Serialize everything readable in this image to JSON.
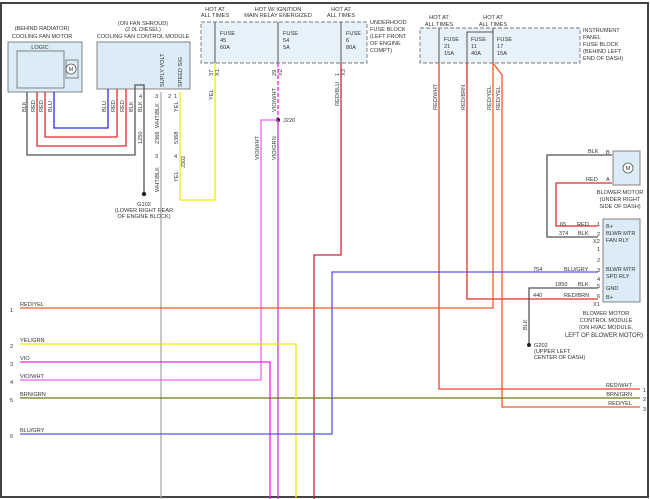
{
  "colors": {
    "RED": "#e8262a",
    "RED_YEL": "#f25a2a",
    "YEL": "#ecea10",
    "VIO": "#f020e0",
    "VIO_WHT": "#f060f0",
    "BLU": "#2a2ae8",
    "BLU_GRY": "#5555f0",
    "BLK": "#555555",
    "BRN_GRN": "#6b7a10",
    "RED_BLU": "#d02040",
    "WHT_BLK": "#999999",
    "box_fill": "#dcecf7"
  },
  "cooling_fan_motor": {
    "loc": "(BEHIND RADIATOR)",
    "name": "COOLING FAN MOTOR",
    "logic": "LOGIC",
    "motor": "M",
    "wires": [
      "BLK",
      "RED",
      "RED",
      "BLU"
    ]
  },
  "cooling_fan_module": {
    "loc1": "(ON FAN SHROUD)",
    "loc2": "(2.0L DIESEL)",
    "name": "COOLING FAN CONTROL MODULE",
    "pin_supply": "SUPLY VOLT",
    "pin_speed": "SPEED SIG",
    "wires": [
      "BLU",
      "RED",
      "RED",
      "BLK"
    ],
    "pins": {
      "blk_pin": "4",
      "wht_pin": "3",
      "pin2": "2",
      "yel_pin": "1",
      "blk_circuit": "1250",
      "blk_color": "BLK",
      "wht_color": "WHT/BLK",
      "wht_circuit": "2366",
      "yel_color": "YEL",
      "yel_circuit": "5368",
      "lower_wht_pin": "3",
      "lower_yel_pin": "4",
      "connector": "J302"
    }
  },
  "g102": {
    "name": "G102",
    "loc1": "(LOWER RIGHT REAR",
    "loc2": "OF ENGINE BLOCK)"
  },
  "underhood_fuse_block": {
    "label": [
      "UNDERHOOD",
      "FUSE BLOCK",
      "(LEFT FRONT",
      "OF ENGINE",
      "COMPT)"
    ],
    "fuses": [
      {
        "hot1": "HOT AT",
        "hot2": "ALL TIMES",
        "name": "FUSE",
        "num": "45",
        "amp": "60A",
        "pin": "37",
        "conn": "X1",
        "wire": "YEL"
      },
      {
        "hot1": "HOT W/ IGNITION",
        "hot2": "MAIN RELAY ENERGIZED",
        "name": "FUSE",
        "num": "54",
        "amp": "5A",
        "pin": "29",
        "conn": "X2",
        "wire": "VIO/WHT"
      },
      {
        "hot1": "HOT AT",
        "hot2": "ALL TIMES",
        "name": "FUSE",
        "num": "6",
        "amp": "80A",
        "pin": "1",
        "conn": "X3",
        "wire": "RED/BLU"
      }
    ]
  },
  "splice": {
    "name": "J220",
    "wire_a": "VIO/WHT",
    "wire_b": "VIO/GRN"
  },
  "ip_fuse_block": {
    "label": [
      "INSTRUMENT",
      "PANEL",
      "FUSE BLOCK",
      "(BEHIND LEFT",
      "END OF DASH)"
    ],
    "hot_left": [
      "HOT AT",
      "ALL TIMES"
    ],
    "hot_right": [
      "HOT AT",
      "ALL TIMES"
    ],
    "fuses": [
      {
        "name": "FUSE",
        "num": "21",
        "amp": "15A",
        "wire": "RED/WHT"
      },
      {
        "name": "FUSE",
        "num": "11",
        "amp": "40A",
        "wire": "RED/BRN"
      },
      {
        "name": "FUSE",
        "num": "17",
        "amp": "15A",
        "wire": "RED/YEL",
        "wire2": "RED/YEL"
      }
    ]
  },
  "blower_motor": {
    "name": "BLOWER MOTOR",
    "loc1": "(UNDER RIGHT",
    "loc2": "SIDE OF DASH)",
    "pin_b": "B",
    "pin_a": "A",
    "wire_b": "BLK",
    "wire_a": "RED",
    "motor": "M"
  },
  "blower_module": {
    "name1": "BLOWER MOTOR",
    "name2": "CONTROL MODULE",
    "loc1": "(ON HVAC MODULE,",
    "loc2": "LEFT OF BLOWER MOTOR)",
    "x2": {
      "conn": "X2",
      "label1": "B+",
      "label2": "BLWR MTR",
      "label3": "FAN RLY",
      "pins": [
        {
          "pin": "1",
          "circuit": "65",
          "color": "RED"
        },
        {
          "pin": "2",
          "circuit": "374",
          "color": "BLK"
        }
      ]
    },
    "x1": {
      "conn": "X1",
      "relay1": "BLWR MTR",
      "relay2": "SPD RLY",
      "gnd": "GND",
      "bplus": "B+",
      "pins": [
        {
          "pin": "1"
        },
        {
          "pin": "2"
        },
        {
          "pin": "3",
          "circuit": "754",
          "color": "BLU/GRY"
        },
        {
          "pin": "4"
        },
        {
          "pin": "5",
          "circuit": "1850",
          "color": "BLK"
        },
        {
          "pin": "6",
          "circuit": "440",
          "color": "RED/BRN"
        }
      ]
    }
  },
  "g202": {
    "name": "G202",
    "loc1": "(UPPER LEFT",
    "loc2": "CENTER OF DASH)",
    "wire": "BLK"
  },
  "left_lines": [
    {
      "num": "1",
      "color": "RED/YEL"
    },
    {
      "num": "2",
      "color": "YEL/GRN"
    },
    {
      "num": "3",
      "color": "VIO"
    },
    {
      "num": "4",
      "color": "VIO/WHT"
    },
    {
      "num": "5",
      "color": "BRN/GRN"
    },
    {
      "num": "6",
      "color": "BLU/GRY"
    }
  ],
  "right_lines": [
    {
      "num": "1",
      "color": "RED/WHT"
    },
    {
      "num": "2",
      "color": "BRN/GRN"
    },
    {
      "num": "3",
      "color": "RED/YEL"
    }
  ]
}
